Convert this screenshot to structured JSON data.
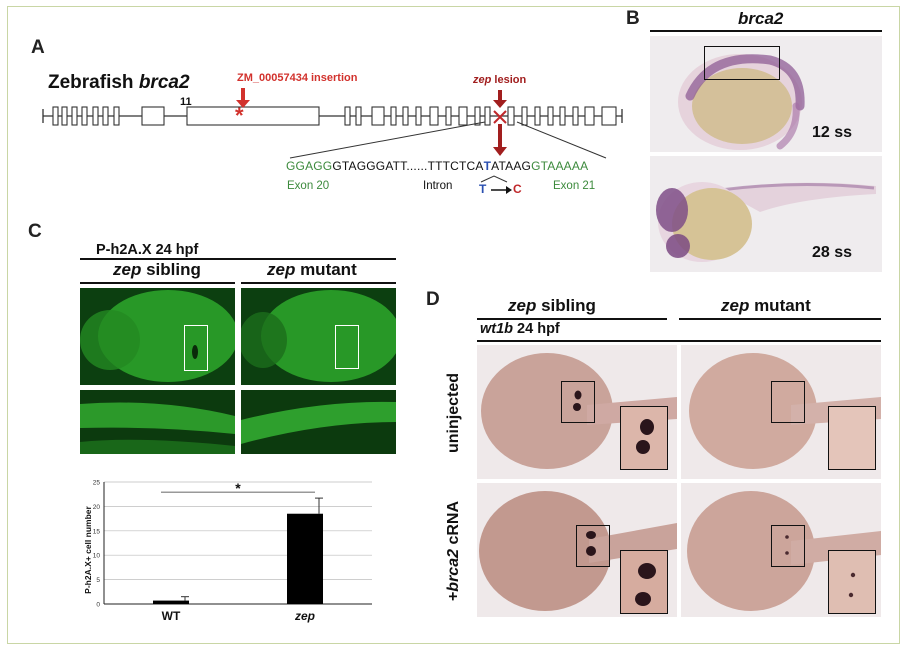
{
  "panel_a": {
    "letter": "A",
    "title_prefix": "Zebrafish ",
    "title_gene": "brca2",
    "exon_number": "11",
    "insertion_label": "ZM_00057434 insertion",
    "lesion_gene": "zep",
    "lesion_suffix": " lesion",
    "sequence": {
      "exon20_seq": "GGAGG",
      "intron_seq_a": "GTAGGGATT......TTTCTCA",
      "mutated_base": "T",
      "intron_seq_b": "ATAAG",
      "exon21_seq": "GTAAAAA",
      "exon20_label": "Exon 20",
      "intron_label": "Intron",
      "exon21_label": "Exon 21",
      "mutation_from": "T",
      "mutation_to": "C"
    },
    "colors": {
      "red": "#d2322d",
      "green": "#3c8a3c",
      "blue": "#2a4fb0",
      "dark_red": "#a11e1e"
    }
  },
  "panel_b": {
    "letter": "B",
    "gene": "brca2",
    "stage_top": "12 ss",
    "stage_bottom": "28 ss"
  },
  "panel_c": {
    "letter": "C",
    "marker": "P-h2A.X 24 hpf",
    "col1_gene": "zep",
    "col1_suffix": " sibling",
    "col2_gene": "zep",
    "col2_suffix": " mutant",
    "chart_data": {
      "type": "bar",
      "categories": [
        "WT",
        "zep"
      ],
      "values": [
        0.7,
        18.5
      ],
      "errors": [
        0.8,
        3.2
      ],
      "ylabel": "P-h2A.X+ cell number",
      "ylim": [
        0,
        25
      ],
      "yticks": [
        0,
        5,
        10,
        15,
        20,
        25
      ],
      "significance": "*",
      "grid": true,
      "bar_color": "#000000"
    }
  },
  "panel_d": {
    "letter": "D",
    "col1_gene": "zep",
    "col1_suffix": " sibling",
    "col2_gene": "zep",
    "col2_suffix": " mutant",
    "marker_gene": "wt1b",
    "marker_suffix": " 24 hpf",
    "row1_label": "uninjected",
    "row2_prefix": "+",
    "row2_gene": "brca2",
    "row2_suffix": " cRNA"
  }
}
